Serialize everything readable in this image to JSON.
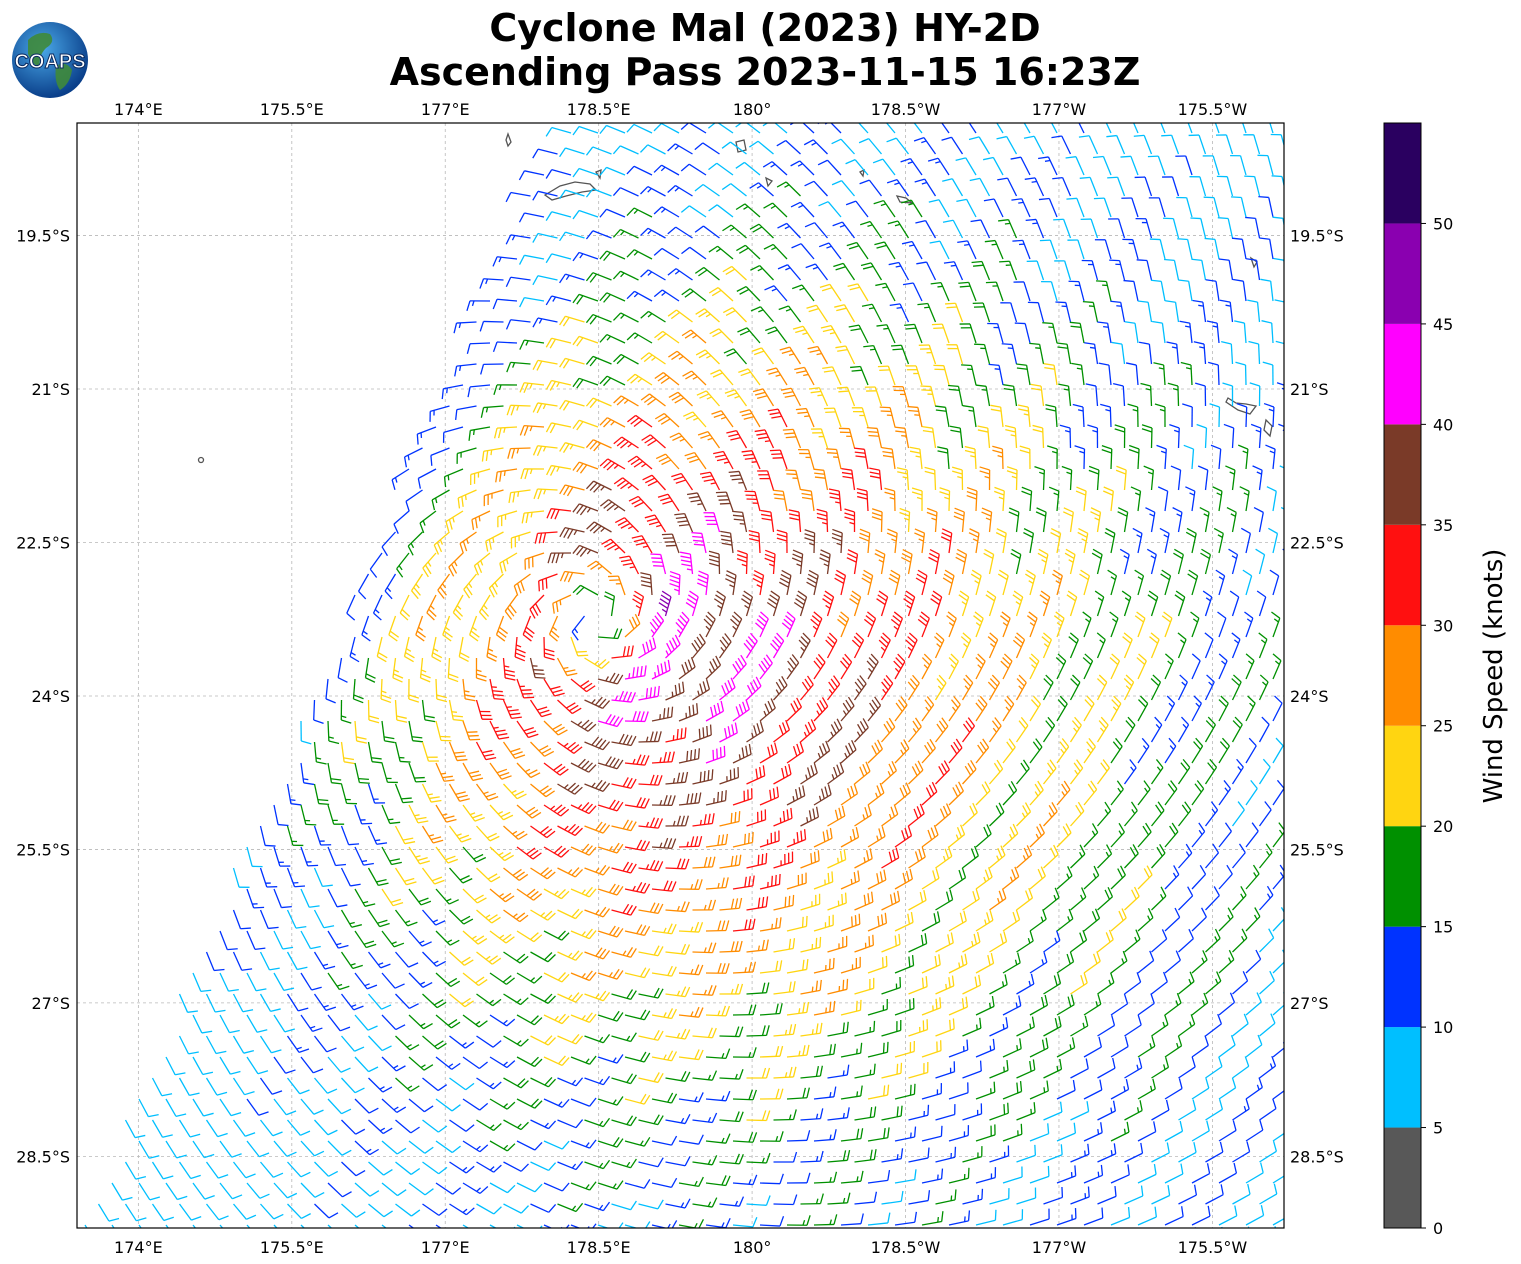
{
  "title": {
    "line1": "Cyclone Mal (2023) HY-2D",
    "line2": "Ascending Pass 2023-11-15 16:23Z"
  },
  "logo": {
    "text": "COAPS",
    "icon": "globe-icon"
  },
  "map": {
    "lon_ticks": [
      "174°E",
      "175.5°E",
      "177°E",
      "178.5°E",
      "180°",
      "178.5°W",
      "177°W",
      "175.5°W"
    ],
    "lat_ticks": [
      "19.5°S",
      "21°S",
      "22.5°S",
      "24°S",
      "25.5°S",
      "27°S",
      "28.5°S"
    ],
    "lon_range_east": [
      173.4,
      185.2
    ],
    "lat_range_south": [
      18.4,
      29.2
    ],
    "storm_center": {
      "lon": 178.45,
      "lat": -23.25
    },
    "gridlines": true
  },
  "colorbar": {
    "label": "Wind Speed (knots)",
    "ticks": [
      "0",
      "5",
      "10",
      "15",
      "20",
      "25",
      "30",
      "35",
      "40",
      "45",
      "50"
    ],
    "bins": [
      {
        "min": 0,
        "max": 5,
        "color": "#585858"
      },
      {
        "min": 5,
        "max": 10,
        "color": "#00bfff"
      },
      {
        "min": 10,
        "max": 15,
        "color": "#0033ff"
      },
      {
        "min": 15,
        "max": 20,
        "color": "#009000"
      },
      {
        "min": 20,
        "max": 25,
        "color": "#ffd511"
      },
      {
        "min": 25,
        "max": 30,
        "color": "#ff8c00"
      },
      {
        "min": 30,
        "max": 35,
        "color": "#ff1010"
      },
      {
        "min": 35,
        "max": 40,
        "color": "#7a3a28"
      },
      {
        "min": 40,
        "max": 45,
        "color": "#ff00ff"
      },
      {
        "min": 45,
        "max": 50,
        "color": "#8a00b0"
      },
      {
        "min": 50,
        "max": 55,
        "color": "#2a0060"
      }
    ]
  }
}
